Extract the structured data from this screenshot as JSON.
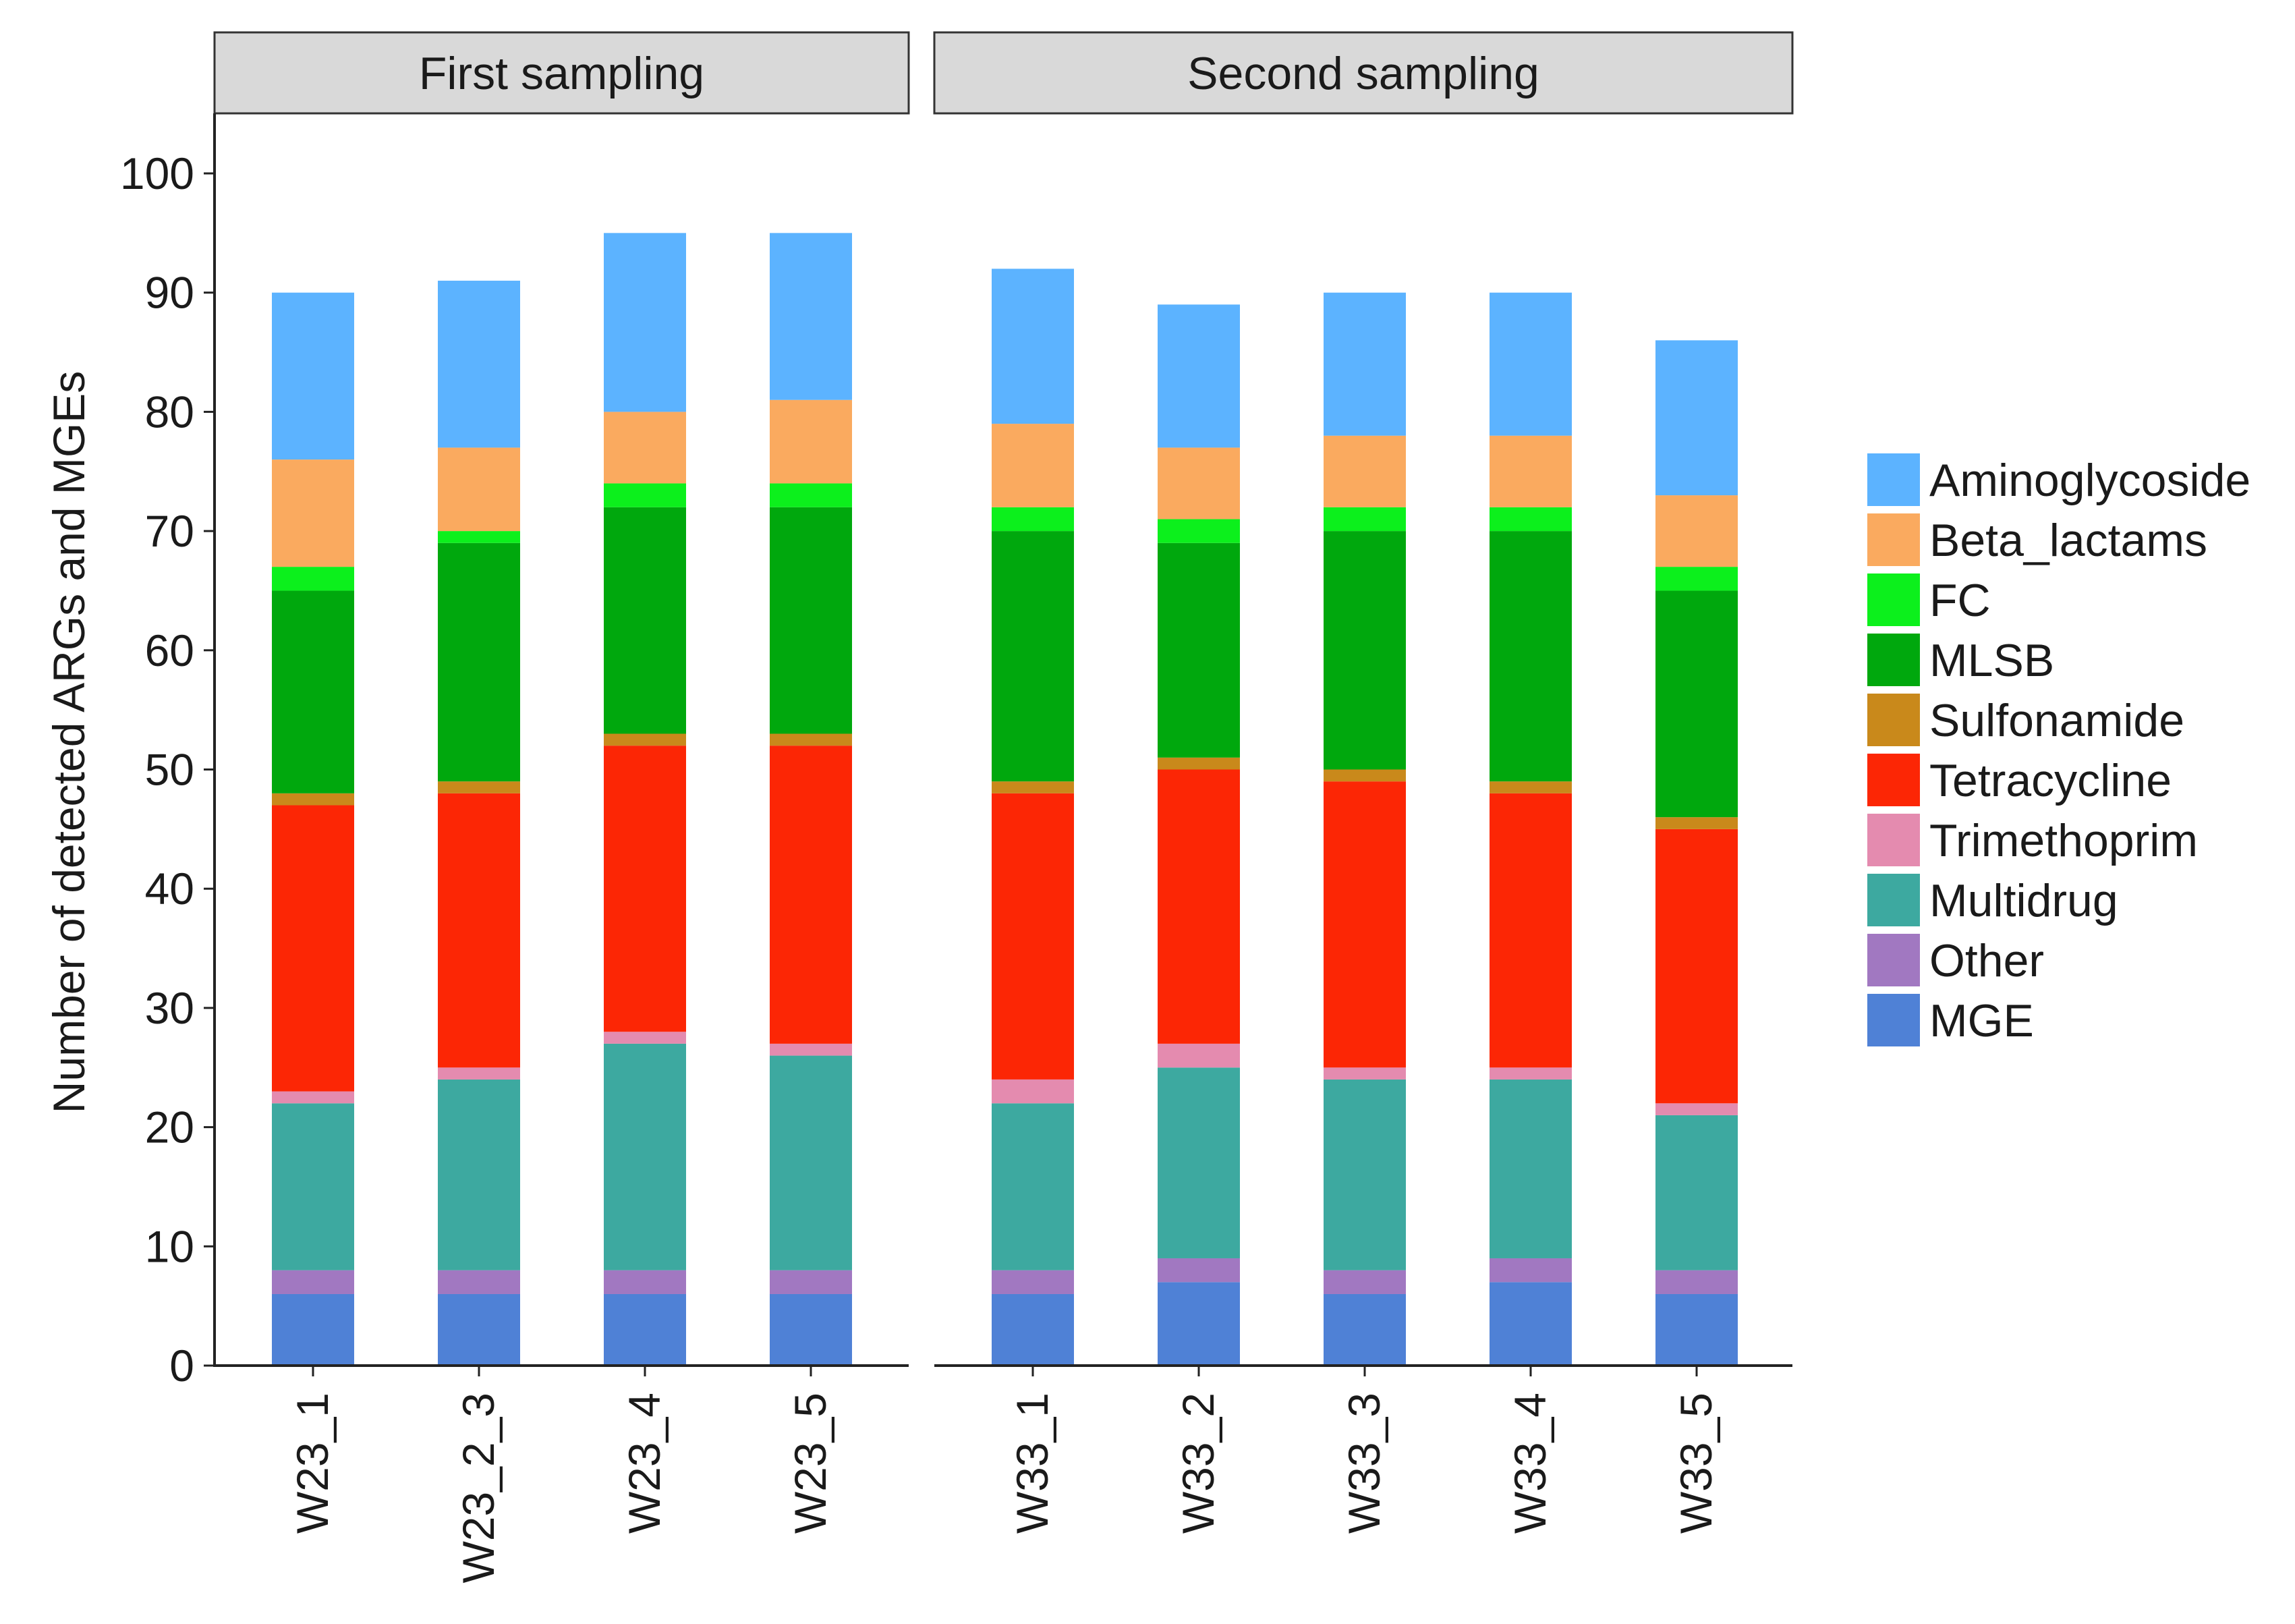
{
  "chart_data": {
    "type": "bar",
    "stacked": true,
    "ylabel": "Number of detected ARGs and MGEs",
    "ylim": [
      0,
      100
    ],
    "yticks": [
      0,
      10,
      20,
      30,
      40,
      50,
      60,
      70,
      80,
      90,
      100
    ],
    "legend_position": "right",
    "categories_order": [
      "MGE",
      "Other",
      "Multidrug",
      "Trimethoprim",
      "Tetracycline",
      "Sulfonamide",
      "MLSB",
      "FC",
      "Beta_lactams",
      "Aminoglycoside"
    ],
    "legend_order": [
      "Aminoglycoside",
      "Beta_lactams",
      "FC",
      "MLSB",
      "Sulfonamide",
      "Tetracycline",
      "Trimethoprim",
      "Multidrug",
      "Other",
      "MGE"
    ],
    "colors": {
      "Aminoglycoside": "#5CB3FF",
      "Beta_lactams": "#FAAA5F",
      "FC": "#0CF01C",
      "MLSB": "#00A80D",
      "Sulfonamide": "#C9891B",
      "Tetracycline": "#FC2605",
      "Trimethoprim": "#E48BAF",
      "Multidrug": "#3DA9A0",
      "Other": "#A178C1",
      "MGE": "#4F81D6"
    },
    "panels": [
      {
        "title": "First sampling",
        "samples": [
          {
            "label": "W23_1",
            "values": {
              "MGE": 6,
              "Other": 2,
              "Multidrug": 14,
              "Trimethoprim": 1,
              "Tetracycline": 24,
              "Sulfonamide": 1,
              "MLSB": 17,
              "FC": 2,
              "Beta_lactams": 9,
              "Aminoglycoside": 14
            }
          },
          {
            "label": "W23_2_3",
            "values": {
              "MGE": 6,
              "Other": 2,
              "Multidrug": 16,
              "Trimethoprim": 1,
              "Tetracycline": 23,
              "Sulfonamide": 1,
              "MLSB": 20,
              "FC": 1,
              "Beta_lactams": 7,
              "Aminoglycoside": 14
            }
          },
          {
            "label": "W23_4",
            "values": {
              "MGE": 6,
              "Other": 2,
              "Multidrug": 19,
              "Trimethoprim": 1,
              "Tetracycline": 24,
              "Sulfonamide": 1,
              "MLSB": 19,
              "FC": 2,
              "Beta_lactams": 6,
              "Aminoglycoside": 15
            }
          },
          {
            "label": "W23_5",
            "values": {
              "MGE": 6,
              "Other": 2,
              "Multidrug": 18,
              "Trimethoprim": 1,
              "Tetracycline": 25,
              "Sulfonamide": 1,
              "MLSB": 19,
              "FC": 2,
              "Beta_lactams": 7,
              "Aminoglycoside": 14
            }
          }
        ]
      },
      {
        "title": "Second sampling",
        "samples": [
          {
            "label": "W33_1",
            "values": {
              "MGE": 6,
              "Other": 2,
              "Multidrug": 14,
              "Trimethoprim": 2,
              "Tetracycline": 24,
              "Sulfonamide": 1,
              "MLSB": 21,
              "FC": 2,
              "Beta_lactams": 7,
              "Aminoglycoside": 13
            }
          },
          {
            "label": "W33_2",
            "values": {
              "MGE": 7,
              "Other": 2,
              "Multidrug": 16,
              "Trimethoprim": 2,
              "Tetracycline": 23,
              "Sulfonamide": 1,
              "MLSB": 18,
              "FC": 2,
              "Beta_lactams": 6,
              "Aminoglycoside": 12
            }
          },
          {
            "label": "W33_3",
            "values": {
              "MGE": 6,
              "Other": 2,
              "Multidrug": 16,
              "Trimethoprim": 1,
              "Tetracycline": 24,
              "Sulfonamide": 1,
              "MLSB": 20,
              "FC": 2,
              "Beta_lactams": 6,
              "Aminoglycoside": 12
            }
          },
          {
            "label": "W33_4",
            "values": {
              "MGE": 7,
              "Other": 2,
              "Multidrug": 15,
              "Trimethoprim": 1,
              "Tetracycline": 23,
              "Sulfonamide": 1,
              "MLSB": 21,
              "FC": 2,
              "Beta_lactams": 6,
              "Aminoglycoside": 12
            }
          },
          {
            "label": "W33_5",
            "values": {
              "MGE": 6,
              "Other": 2,
              "Multidrug": 13,
              "Trimethoprim": 1,
              "Tetracycline": 23,
              "Sulfonamide": 1,
              "MLSB": 19,
              "FC": 2,
              "Beta_lactams": 6,
              "Aminoglycoside": 13
            }
          }
        ]
      }
    ]
  }
}
